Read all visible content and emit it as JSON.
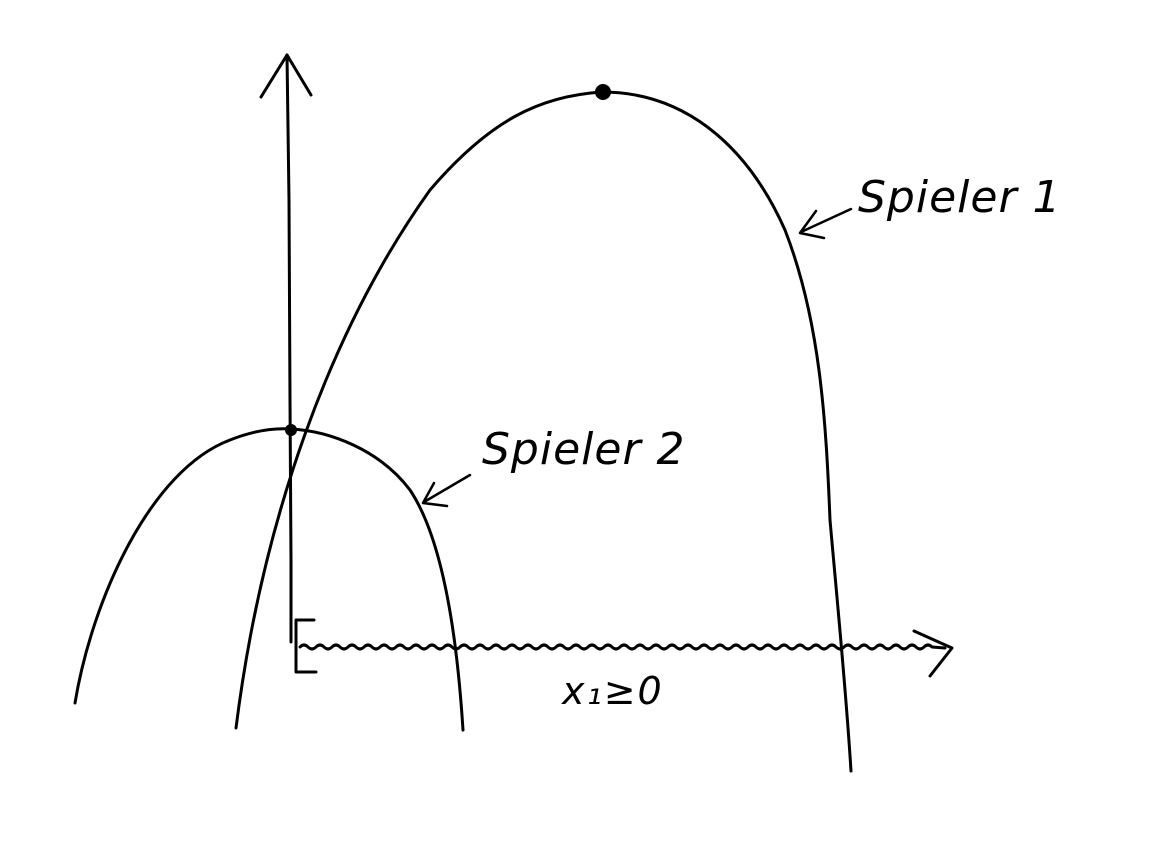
{
  "labels": {
    "player1": "Spieler 1",
    "player2": "Spieler 2",
    "constraint": "x₁≥0"
  },
  "colors": {
    "ink": "#000000",
    "paper": "#ffffff"
  }
}
